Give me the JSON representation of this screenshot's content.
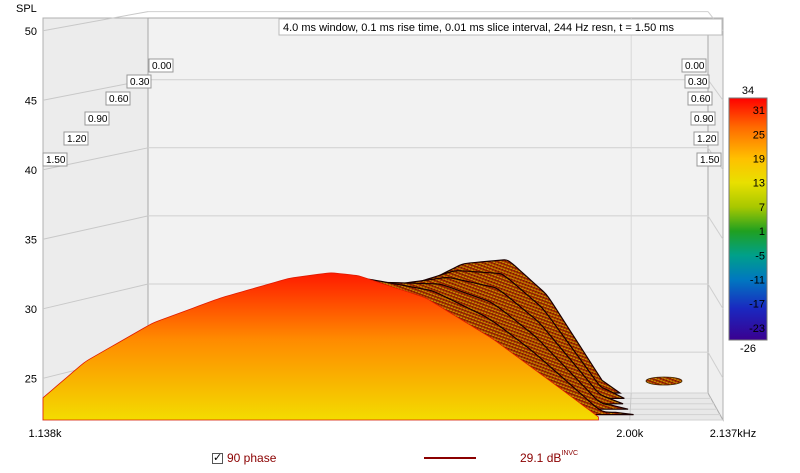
{
  "chart_data": {
    "type": "waterfall-3d",
    "title": "4.0 ms window, 0.1 ms rise time, 0.01 ms slice interval, 244 Hz resn, t = 1.50 ms",
    "ylabel": "SPL",
    "yticks": [
      "50",
      "45",
      "40",
      "35",
      "30",
      "25"
    ],
    "ylim": [
      22,
      51
    ],
    "xticks": [
      "1.138k",
      "2.00k",
      "2.137kHz"
    ],
    "xlim_hz": [
      1138,
      2137
    ],
    "time_labels_left": [
      "0.00",
      "0.30",
      "0.60",
      "0.90",
      "1.20",
      "1.50"
    ],
    "time_labels_right": [
      "0.00",
      "0.30",
      "0.60",
      "0.90",
      "1.20",
      "1.50"
    ],
    "time_ms": [
      0.0,
      0.3,
      0.6,
      0.9,
      1.2,
      1.5
    ],
    "colorbar": {
      "labels": [
        "34",
        "31",
        "25",
        "19",
        "13",
        "7",
        "1",
        "-5",
        "-11",
        "-17",
        "-23",
        "-26"
      ],
      "range": [
        -26,
        34
      ],
      "colors": [
        "#ff0000",
        "#ff7a00",
        "#ffd400",
        "#c8d400",
        "#2aa800",
        "#00a080",
        "#0070c0",
        "#1a20c0",
        "#4000a0"
      ]
    },
    "front_slice": {
      "time_ms": 0.0,
      "points": [
        [
          1138,
          23.6
        ],
        [
          1200,
          26.2
        ],
        [
          1300,
          29.0
        ],
        [
          1400,
          30.8
        ],
        [
          1500,
          32.2
        ],
        [
          1560,
          32.6
        ],
        [
          1600,
          32.4
        ],
        [
          1700,
          30.8
        ],
        [
          1800,
          27.8
        ],
        [
          1900,
          24.2
        ],
        [
          1960,
          22.0
        ]
      ]
    },
    "rear_slice": {
      "time_ms": 1.5,
      "points": [
        [
          1138,
          22.5
        ],
        [
          1250,
          27.0
        ],
        [
          1400,
          29.4
        ],
        [
          1560,
          28.6
        ],
        [
          1700,
          31.5
        ],
        [
          1780,
          31.8
        ],
        [
          1850,
          29.2
        ],
        [
          1950,
          22.8
        ]
      ]
    },
    "colors": {
      "surface_front_top": "#ff2a00",
      "surface_front_bottom": "#f2e000",
      "surface_back": "#8b0a00"
    }
  },
  "legend": {
    "phase_label": "90 phase",
    "phase_checked": true,
    "trace_value": "29.1 dB",
    "trace_sup": "INVC",
    "trace_color": "#8b0000"
  }
}
